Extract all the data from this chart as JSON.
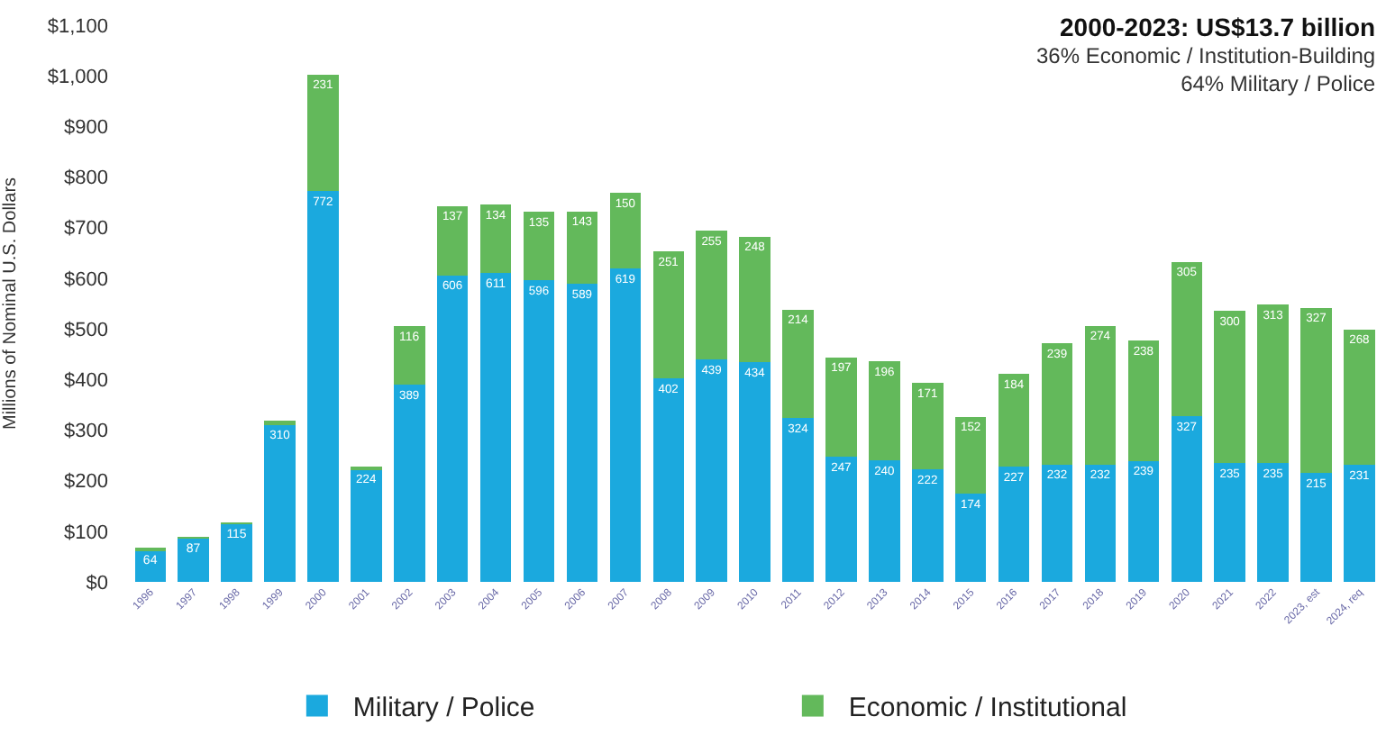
{
  "chart_data": {
    "type": "bar",
    "stacked": true,
    "title": "2000-2023: US$13.7 billion",
    "subtitle": "36% Economic / Institution-Building\n64% Military / Police",
    "ylabel": "Millions of Nominal U.S. Dollars",
    "categories": [
      "1996",
      "1997",
      "1998",
      "1999",
      "2000",
      "2001",
      "2002",
      "2003",
      "2004",
      "2005",
      "2006",
      "2007",
      "2008",
      "2009",
      "2010",
      "2011",
      "2012",
      "2013",
      "2014",
      "2015",
      "2016",
      "2017",
      "2018",
      "2019",
      "2020",
      "2021",
      "2022",
      "2023, est",
      "2024, req"
    ],
    "series": [
      {
        "name": "Military / Police",
        "color": "#1ba9de",
        "values": [
          64,
          87,
          115,
          310,
          772,
          224,
          389,
          606,
          611,
          596,
          589,
          619,
          402,
          439,
          434,
          324,
          247,
          240,
          222,
          174,
          227,
          232,
          232,
          239,
          327,
          235,
          235,
          215,
          231
        ],
        "value_labels": [
          "64",
          "87",
          "115",
          "310",
          "772",
          "224",
          "389",
          "606",
          "611",
          "596",
          "589",
          "619",
          "402",
          "439",
          "434",
          "324",
          "247",
          "240",
          "222",
          "174",
          "227",
          "232",
          "232",
          "239",
          "327",
          "235",
          "235",
          "215",
          "231"
        ]
      },
      {
        "name": "Economic / Institutional",
        "color": "#63b95b",
        "values": [
          1,
          1,
          1,
          8,
          231,
          1,
          116,
          137,
          134,
          135,
          143,
          150,
          251,
          255,
          248,
          214,
          197,
          196,
          171,
          152,
          184,
          239,
          274,
          238,
          305,
          300,
          313,
          327,
          268
        ],
        "value_labels": [
          null,
          null,
          null,
          null,
          "231",
          null,
          "116",
          "137",
          "134",
          "135",
          "143",
          "150",
          "251",
          "255",
          "248",
          "214",
          "197",
          "196",
          "171",
          "152",
          "184",
          "239",
          "274",
          "238",
          "305",
          "300",
          "313",
          "327",
          "268"
        ]
      }
    ],
    "ylim": [
      0,
      1100
    ],
    "yticks": [
      {
        "value": 0,
        "label": "$0"
      },
      {
        "value": 100,
        "label": "$100"
      },
      {
        "value": 200,
        "label": "$200"
      },
      {
        "value": 300,
        "label": "$300"
      },
      {
        "value": 400,
        "label": "$400"
      },
      {
        "value": 500,
        "label": "$500"
      },
      {
        "value": 600,
        "label": "$600"
      },
      {
        "value": 700,
        "label": "$700"
      },
      {
        "value": 800,
        "label": "$800"
      },
      {
        "value": 900,
        "label": "$900"
      },
      {
        "value": 1000,
        "label": "$1,000"
      },
      {
        "value": 1100,
        "label": "$1,100"
      }
    ],
    "legend": "bottom"
  }
}
